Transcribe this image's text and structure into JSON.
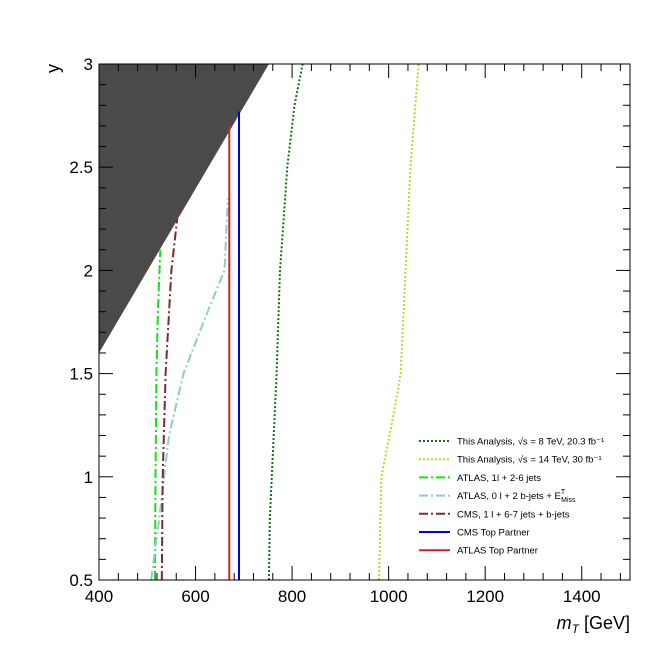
{
  "chart_data": {
    "type": "line",
    "title": "",
    "xlabel": "m",
    "xlabel_sub": "T",
    "xlabel_unit": " [GeV]",
    "ylabel": "y",
    "xlim": [
      400,
      1500
    ],
    "ylim": [
      0.5,
      3.0
    ],
    "x_tick_labels": [
      "400",
      "600",
      "800",
      "1000",
      "1200",
      "1400"
    ],
    "y_tick_labels": [
      "0.5",
      "1",
      "1.5",
      "2",
      "2.5",
      "3"
    ],
    "excluded_region": {
      "color": "#4a4a4a",
      "points": [
        [
          400,
          1.6
        ],
        [
          400,
          3.0
        ],
        [
          752,
          3.0
        ]
      ]
    },
    "series": [
      {
        "name": "This Analysis, √s = 8 TeV, 20.3 fb⁻¹",
        "color": "#1a6a1a",
        "dash": "2,2",
        "width": 2,
        "points": [
          [
            752,
            0.5
          ],
          [
            754,
            0.8
          ],
          [
            762,
            1.2
          ],
          [
            768,
            1.5
          ],
          [
            775,
            2.0
          ],
          [
            790,
            2.5
          ],
          [
            805,
            2.8
          ],
          [
            822,
            3.0
          ]
        ]
      },
      {
        "name": "This Analysis, √s = 14 TeV, 30 fb⁻¹",
        "color": "#c4d426",
        "dash": "2,2",
        "width": 2,
        "points": [
          [
            980,
            0.5
          ],
          [
            985,
            1.0
          ],
          [
            1010,
            1.3
          ],
          [
            1025,
            1.5
          ],
          [
            1035,
            2.0
          ],
          [
            1045,
            2.5
          ],
          [
            1062,
            3.0
          ]
        ]
      },
      {
        "name": "ATLAS, 1l + 2-6 jets",
        "color": "#16e016",
        "dash": "9,3,2,3",
        "width": 2,
        "points": [
          [
            516,
            0.5
          ],
          [
            517,
            1.0
          ],
          [
            519,
            1.5
          ],
          [
            522,
            1.8
          ],
          [
            527,
            2.1
          ]
        ]
      },
      {
        "name": "ATLAS, 0 l + 2 b-jets + E_T^Miss",
        "color": "#8ecbcb",
        "dash": "9,3,2,3",
        "width": 2,
        "points": [
          [
            508,
            0.5
          ],
          [
            525,
            0.8
          ],
          [
            545,
            1.2
          ],
          [
            575,
            1.5
          ],
          [
            625,
            1.8
          ],
          [
            660,
            2.0
          ],
          [
            667,
            2.35
          ]
        ]
      },
      {
        "name": "CMS, 1 l + 6-7 jets + b-jets",
        "color": "#7a2c2c",
        "dash": "9,3,2,3",
        "width": 2,
        "points": [
          [
            530,
            0.5
          ],
          [
            532,
            1.0
          ],
          [
            538,
            1.5
          ],
          [
            550,
            2.0
          ],
          [
            562,
            2.25
          ]
        ]
      },
      {
        "name": "CMS Top Partner",
        "color": "#0000dd",
        "dash": "",
        "width": 2,
        "points": [
          [
            690,
            0.5
          ],
          [
            690,
            2.77
          ]
        ]
      },
      {
        "name": "ATLAS Top Partner",
        "color": "#cc2222",
        "dash": "",
        "width": 2,
        "points": [
          [
            670,
            0.5
          ],
          [
            670,
            2.7
          ]
        ]
      }
    ],
    "legend": {
      "position": "bottom-right",
      "entries": [
        {
          "series_index": 0,
          "label": "This Analysis, √s = 8 TeV, 20.3 fb⁻¹"
        },
        {
          "series_index": 1,
          "label": "This Analysis, √s = 14 TeV, 30 fb⁻¹"
        },
        {
          "series_index": 2,
          "label": "ATLAS, 1l  + 2-6 jets"
        },
        {
          "series_index": 3,
          "label": "ATLAS, 0 l  + 2 b-jets + E_T^Miss"
        },
        {
          "series_index": 4,
          "label": "CMS, 1 l  + 6-7 jets + b-jets"
        },
        {
          "series_index": 5,
          "label": "CMS Top Partner"
        },
        {
          "series_index": 6,
          "label": "ATLAS Top Partner"
        }
      ]
    }
  }
}
